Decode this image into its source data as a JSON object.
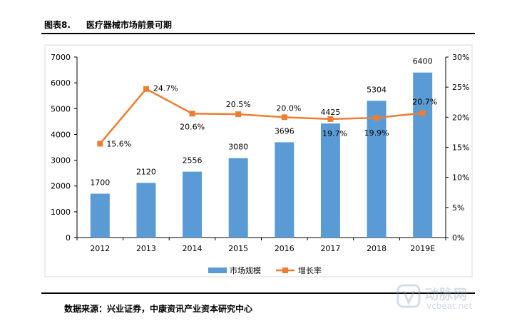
{
  "figure": {
    "number": "图表8.",
    "title": "医疗器械市场前景可期",
    "source": "数据来源：兴业证券，中康资讯产业资本研究中心",
    "watermark": {
      "name": "动脉网",
      "url": "vcbeat.net"
    }
  },
  "chart_data": {
    "type": "bar",
    "categories": [
      "2012",
      "2013",
      "2014",
      "2015",
      "2016",
      "2017",
      "2018",
      "2019E"
    ],
    "series": [
      {
        "name": "市场规模",
        "type": "bar",
        "axis": "left",
        "color": "#5b9bd5",
        "values": [
          1700,
          2120,
          2556,
          3080,
          3696,
          4425,
          5304,
          6400
        ],
        "labels": [
          "1700",
          "2120",
          "2556",
          "3080",
          "3696",
          "4425",
          "5304",
          "6400"
        ]
      },
      {
        "name": "增长率",
        "type": "line",
        "axis": "right",
        "color": "#ed7d31",
        "values": [
          15.6,
          24.7,
          20.6,
          20.5,
          20.0,
          19.7,
          19.9,
          20.7
        ],
        "labels": [
          "15.6%",
          "24.7%",
          "20.6%",
          "20.5%",
          "20.0%",
          "19.7%",
          "19.9%",
          "20.7%"
        ]
      }
    ],
    "y_left": {
      "min": 0,
      "max": 7000,
      "ticks": [
        "0",
        "1000",
        "2000",
        "3000",
        "4000",
        "5000",
        "6000",
        "7000"
      ]
    },
    "y_right": {
      "min": 0,
      "max": 30,
      "ticks": [
        "0%",
        "5%",
        "10%",
        "15%",
        "20%",
        "25%",
        "30%"
      ]
    },
    "legend": [
      "市场规模",
      "增长率"
    ],
    "legend_position": "bottom",
    "grid": false
  }
}
